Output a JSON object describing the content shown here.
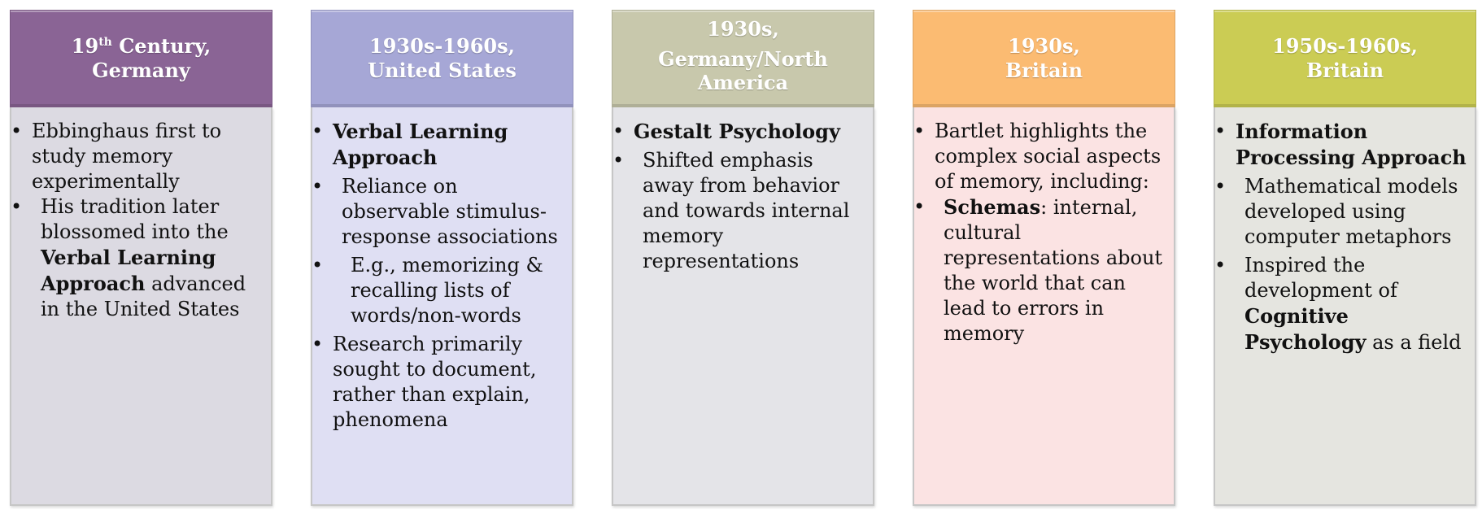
{
  "columns": [
    {
      "header_line1": "19",
      "header_sup": "th",
      "header_line1_rest": " Century,",
      "header_line2": "Germany",
      "header_color": "#8a6495",
      "body_color": "#dcdae2",
      "bullets": [
        {
          "text": "Ebbinghaus first to study memory experimentally"
        },
        {
          "pre": "His tradition later blossomed into the ",
          "bold": "Verbal Learning Approach",
          "post": " advanced in the United States"
        }
      ]
    },
    {
      "header_line1": "1930s-1960s,",
      "header_line2": "United States",
      "header_color": "#a6a7d6",
      "body_color": "#dfdff3",
      "bullets": [
        {
          "bold": "Verbal Learning Approach"
        },
        {
          "text": "Reliance on observable stimulus-response associations"
        },
        {
          "text": "E.g., memorizing & recalling lists of words/non-words"
        },
        {
          "text": "Research primarily sought to document, rather than explain, phenomena"
        }
      ]
    },
    {
      "header_line1": "1930s,",
      "header_line2": "Germany/North America",
      "header_color": "#c8c8ac",
      "body_color": "#e4e4e8",
      "bullets": [
        {
          "bold": "Gestalt Psychology"
        },
        {
          "text": "Shifted emphasis away from behavior and towards internal memory representations"
        }
      ]
    },
    {
      "header_line1": "1930s,",
      "header_line2": "Britain",
      "header_color": "#fbbb72",
      "body_color": "#fbe3e3",
      "bullets": [
        {
          "text": "Bartlet highlights the complex social aspects of memory, including:"
        },
        {
          "bold": "Schemas",
          "post": ": internal, cultural representations about the world that can lead to errors in memory"
        }
      ]
    },
    {
      "header_line1": "1950s-1960s,",
      "header_line2": "Britain",
      "header_color": "#cbcc54",
      "body_color": "#e5e5e0",
      "bullets": [
        {
          "bold": "Information Processing Approach"
        },
        {
          "text": "Mathematical models developed using computer metaphors"
        },
        {
          "text": "Inspired the development of ",
          "bold": "Cognitive Psychology",
          "post": " as a field"
        }
      ]
    }
  ]
}
